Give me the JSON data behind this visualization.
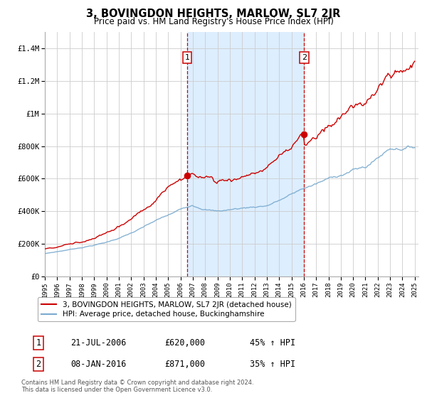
{
  "title": "3, BOVINGDON HEIGHTS, MARLOW, SL7 2JR",
  "subtitle": "Price paid vs. HM Land Registry's House Price Index (HPI)",
  "ylim": [
    0,
    1500000
  ],
  "yticks": [
    0,
    200000,
    400000,
    600000,
    800000,
    1000000,
    1200000,
    1400000
  ],
  "ytick_labels": [
    "£0",
    "£200K",
    "£400K",
    "£600K",
    "£800K",
    "£1M",
    "£1.2M",
    "£1.4M"
  ],
  "x_start_year": 1995,
  "x_end_year": 2025,
  "marker1_date": 2006.55,
  "marker1_value": 620000,
  "marker1_label": "1",
  "marker1_text": "21-JUL-2006",
  "marker1_price": "£620,000",
  "marker1_hpi": "45% ↑ HPI",
  "marker2_date": 2016.02,
  "marker2_value": 871000,
  "marker2_label": "2",
  "marker2_text": "08-JAN-2016",
  "marker2_price": "£871,000",
  "marker2_hpi": "35% ↑ HPI",
  "red_line_color": "#cc0000",
  "blue_line_color": "#7aabcf",
  "shaded_color": "#ddeeff",
  "grid_color": "#cccccc",
  "background_color": "#ffffff",
  "legend_line1": "3, BOVINGDON HEIGHTS, MARLOW, SL7 2JR (detached house)",
  "legend_line2": "HPI: Average price, detached house, Buckinghamshire",
  "footer1": "Contains HM Land Registry data © Crown copyright and database right 2024.",
  "footer2": "This data is licensed under the Open Government Licence v3.0."
}
